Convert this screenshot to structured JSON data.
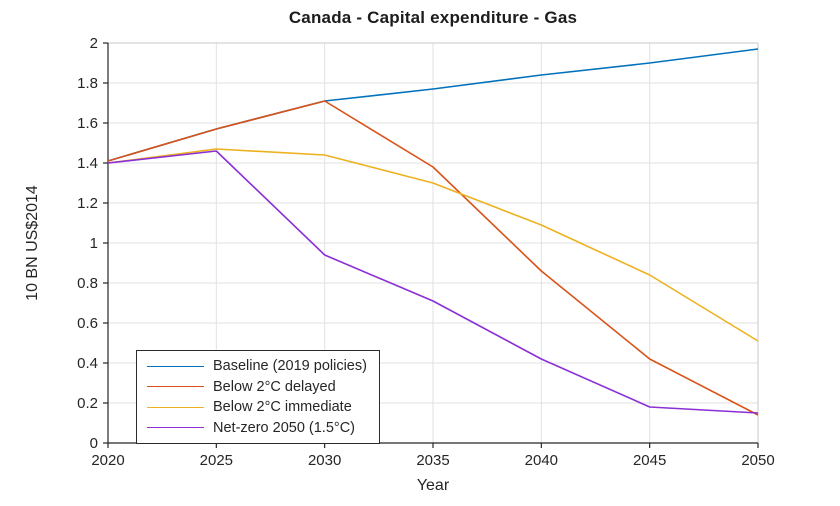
{
  "chart_data": {
    "type": "line",
    "title": "Canada - Capital expenditure - Gas",
    "xlabel": "Year",
    "ylabel": "10 BN US$2014",
    "xlim": [
      2020,
      2050
    ],
    "ylim": [
      0,
      2
    ],
    "grid": true,
    "legend_position": "bottom-left",
    "x_ticks": [
      2020,
      2025,
      2030,
      2035,
      2040,
      2045,
      2050
    ],
    "x_tick_labels": [
      "2020",
      "2025",
      "2030",
      "2035",
      "2040",
      "2045",
      "2050"
    ],
    "y_ticks": [
      0,
      0.2,
      0.4,
      0.6,
      0.8,
      1,
      1.2,
      1.4,
      1.6,
      1.8,
      2
    ],
    "y_tick_labels": [
      "0",
      "0.2",
      "0.4",
      "0.6",
      "0.8",
      "1",
      "1.2",
      "1.4",
      "1.6",
      "1.8",
      "2"
    ],
    "x": [
      2020,
      2025,
      2030,
      2035,
      2040,
      2045,
      2050
    ],
    "series": [
      {
        "id": "baseline-2019-policies",
        "name": "Baseline (2019 policies)",
        "color": "#0072BD",
        "values": [
          1.41,
          1.57,
          1.71,
          1.77,
          1.84,
          1.9,
          1.97
        ]
      },
      {
        "id": "below-2c-delayed",
        "name": "Below 2°C delayed",
        "color": "#D95319",
        "values": [
          1.41,
          1.57,
          1.71,
          1.38,
          0.86,
          0.42,
          0.14
        ]
      },
      {
        "id": "below-2c-immediate",
        "name": "Below 2°C immediate",
        "color": "#EDB120",
        "values": [
          1.4,
          1.47,
          1.44,
          1.3,
          1.09,
          0.84,
          0.51
        ]
      },
      {
        "id": "net-zero-2050",
        "name": "Net-zero 2050 (1.5°C)",
        "color": "#8B2FD6",
        "values": [
          1.4,
          1.46,
          0.94,
          0.71,
          0.42,
          0.18,
          0.15
        ]
      }
    ],
    "colors": {
      "grid": "#e2e2e2",
      "axis_dark": "#262626",
      "axis_light": "#c9c9c9",
      "text": "#262626"
    }
  }
}
